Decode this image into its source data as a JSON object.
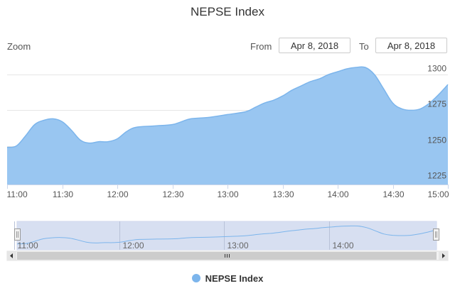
{
  "colors": {
    "series_fill": "#99c6f1",
    "series_line": "#7cb5ec",
    "navigator_fill": "#d0d9ee",
    "grid": "#e6e6e6",
    "scrollbar": "#f2f2f2"
  },
  "range_selector": {
    "zoom_label": "Zoom",
    "from_label": "From",
    "from_value": "Apr 8, 2018",
    "to_label": "To",
    "to_value": "Apr 8, 2018"
  },
  "navigator": {
    "tick_labels": [
      "11:00",
      "12:00",
      "13:00",
      "14:00"
    ],
    "tick_minutes": [
      0,
      60,
      120,
      180
    ]
  },
  "chart_data": {
    "type": "area",
    "title": "NEPSE Index",
    "xlabel": "",
    "ylabel": "",
    "x_tick_labels": [
      "11:00",
      "11:30",
      "12:00",
      "12:30",
      "13:00",
      "13:30",
      "14:00",
      "14:30",
      "15:00"
    ],
    "x_tick_minutes": [
      0,
      30,
      60,
      90,
      120,
      150,
      180,
      210,
      240
    ],
    "y_tick_labels": [
      "1225",
      "1250",
      "1275",
      "1300"
    ],
    "y_ticks": [
      1225,
      1250,
      1275,
      1300
    ],
    "xlim_minutes": [
      0,
      240
    ],
    "ylim": [
      1223,
      1305
    ],
    "grid": "horizontal",
    "legend": "bottom-center",
    "series": [
      {
        "name": "NEPSE Index",
        "x_minutes": [
          0,
          5,
          10,
          15,
          20,
          25,
          30,
          35,
          40,
          45,
          50,
          55,
          60,
          65,
          70,
          80,
          90,
          95,
          100,
          110,
          120,
          130,
          135,
          140,
          145,
          150,
          155,
          160,
          165,
          170,
          175,
          180,
          185,
          190,
          195,
          200,
          205,
          210,
          215,
          220,
          225,
          230,
          235,
          240
        ],
        "values": [
          1249,
          1250,
          1257,
          1265,
          1268,
          1269,
          1267,
          1261,
          1254,
          1252,
          1253,
          1253,
          1255,
          1260,
          1263,
          1264,
          1265,
          1267,
          1269,
          1270,
          1272,
          1274,
          1277,
          1280,
          1282,
          1285,
          1289,
          1292,
          1295,
          1297,
          1300,
          1302,
          1304,
          1305,
          1305,
          1300,
          1290,
          1280,
          1276,
          1275,
          1276,
          1280,
          1286,
          1293
        ]
      }
    ]
  }
}
